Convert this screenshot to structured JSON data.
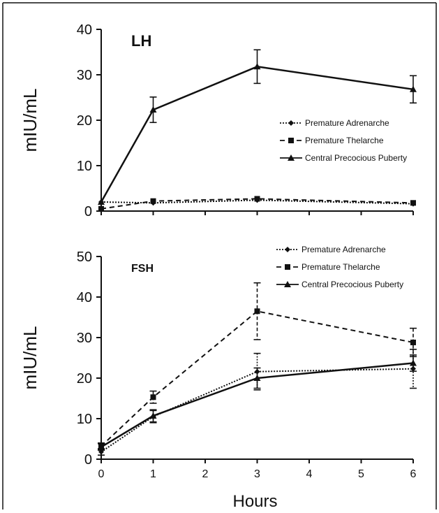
{
  "chart_data": [
    {
      "type": "line",
      "title": "LH",
      "xlabel": "",
      "ylabel": "mIU/mL",
      "x": [
        0,
        1,
        3,
        6
      ],
      "ylim": [
        0,
        40
      ],
      "yticks": [
        "0",
        "10",
        "20",
        "30",
        "40"
      ],
      "legend": "right",
      "series": [
        {
          "name": "Premature Adrenarche",
          "style": "dotted",
          "marker": "diamond",
          "values": [
            2.0,
            1.8,
            2.4,
            1.6
          ],
          "errors": [
            0.3,
            0.3,
            0.4,
            0.3
          ]
        },
        {
          "name": "Premature Thelarche",
          "style": "dashed",
          "marker": "square",
          "values": [
            0.5,
            2.2,
            2.7,
            1.8
          ],
          "errors": [
            0.3,
            0.3,
            0.4,
            0.3
          ]
        },
        {
          "name": "Central Precocious Puberty",
          "style": "solid",
          "marker": "triangle",
          "values": [
            2.0,
            22.3,
            31.8,
            26.8
          ],
          "errors": [
            0.4,
            2.8,
            3.7,
            3.0
          ]
        }
      ]
    },
    {
      "type": "line",
      "title": "FSH",
      "xlabel": "Hours",
      "ylabel": "mIU/mL",
      "x": [
        0,
        1,
        3,
        6
      ],
      "xticks": [
        "0",
        "1",
        "2",
        "3",
        "4",
        "5",
        "6"
      ],
      "ylim": [
        0,
        50
      ],
      "yticks": [
        "0",
        "10",
        "20",
        "30",
        "40",
        "50"
      ],
      "legend": "top-right",
      "series": [
        {
          "name": "Premature Adrenarche",
          "style": "dotted",
          "marker": "diamond",
          "values": [
            1.8,
            10.5,
            21.6,
            22.3
          ],
          "errors": [
            0.8,
            1.5,
            4.5,
            4.8
          ]
        },
        {
          "name": "Premature Thelarche",
          "style": "dashed",
          "marker": "square",
          "values": [
            3.2,
            15.3,
            36.5,
            28.8
          ],
          "errors": [
            0.8,
            1.5,
            7.0,
            3.5
          ]
        },
        {
          "name": "Central Precocious Puberty",
          "style": "solid",
          "marker": "triangle",
          "values": [
            3.0,
            10.7,
            20.0,
            23.7
          ],
          "errors": [
            0.8,
            1.5,
            2.5,
            2.0
          ]
        }
      ]
    }
  ]
}
